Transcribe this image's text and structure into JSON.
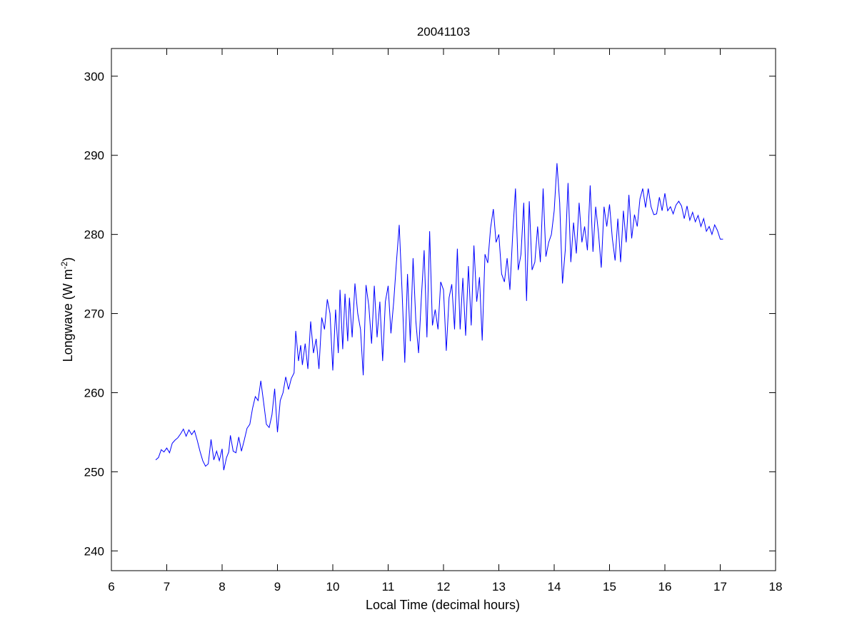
{
  "chart_data": {
    "type": "line",
    "title": "20041103",
    "xlabel": "Local Time (decimal hours)",
    "ylabel_main": "Longwave (W m",
    "ylabel_sup": "-2",
    "ylabel_close": ")",
    "xlim": [
      6,
      18
    ],
    "ylim": [
      237.5,
      303.5
    ],
    "xticks": [
      6,
      7,
      8,
      9,
      10,
      11,
      12,
      13,
      14,
      15,
      16,
      17,
      18
    ],
    "yticks": [
      240,
      250,
      260,
      270,
      280,
      290,
      300
    ],
    "grid": false,
    "line_color": "#0000ff",
    "series": [
      {
        "name": "Longwave",
        "x": [
          6.8,
          6.85,
          6.9,
          6.95,
          7.0,
          7.05,
          7.1,
          7.15,
          7.2,
          7.25,
          7.3,
          7.35,
          7.4,
          7.45,
          7.5,
          7.55,
          7.6,
          7.65,
          7.7,
          7.75,
          7.8,
          7.85,
          7.9,
          7.95,
          8.0,
          8.03,
          8.08,
          8.12,
          8.15,
          8.2,
          8.25,
          8.3,
          8.35,
          8.4,
          8.45,
          8.5,
          8.55,
          8.6,
          8.65,
          8.7,
          8.75,
          8.8,
          8.85,
          8.9,
          8.95,
          9.0,
          9.05,
          9.1,
          9.15,
          9.2,
          9.25,
          9.3,
          9.33,
          9.38,
          9.42,
          9.45,
          9.5,
          9.55,
          9.6,
          9.65,
          9.7,
          9.75,
          9.8,
          9.85,
          9.9,
          9.95,
          10.0,
          10.05,
          10.1,
          10.13,
          10.18,
          10.22,
          10.27,
          10.3,
          10.35,
          10.4,
          10.45,
          10.5,
          10.55,
          10.6,
          10.65,
          10.7,
          10.75,
          10.8,
          10.85,
          10.9,
          10.95,
          11.0,
          11.05,
          11.1,
          11.15,
          11.2,
          11.25,
          11.3,
          11.35,
          11.4,
          11.45,
          11.5,
          11.55,
          11.6,
          11.65,
          11.7,
          11.75,
          11.8,
          11.85,
          11.9,
          11.95,
          12.0,
          12.05,
          12.1,
          12.15,
          12.2,
          12.25,
          12.3,
          12.35,
          12.4,
          12.45,
          12.5,
          12.55,
          12.6,
          12.65,
          12.7,
          12.75,
          12.8,
          12.85,
          12.9,
          12.95,
          13.0,
          13.05,
          13.1,
          13.15,
          13.2,
          13.25,
          13.3,
          13.35,
          13.4,
          13.45,
          13.5,
          13.55,
          13.6,
          13.65,
          13.7,
          13.75,
          13.8,
          13.85,
          13.9,
          13.95,
          14.0,
          14.05,
          14.1,
          14.15,
          14.2,
          14.25,
          14.3,
          14.35,
          14.4,
          14.45,
          14.5,
          14.55,
          14.6,
          14.65,
          14.7,
          14.75,
          14.8,
          14.85,
          14.9,
          14.95,
          15.0,
          15.05,
          15.1,
          15.15,
          15.2,
          15.25,
          15.3,
          15.35,
          15.4,
          15.45,
          15.5,
          15.55,
          15.6,
          15.65,
          15.7,
          15.75,
          15.8,
          15.85,
          15.9,
          15.95,
          16.0,
          16.05,
          16.1,
          16.15,
          16.2,
          16.25,
          16.3,
          16.35,
          16.4,
          16.45,
          16.5,
          16.55,
          16.6,
          16.65,
          16.7,
          16.75,
          16.8,
          16.85,
          16.9,
          16.95,
          17.0,
          17.05
        ],
        "y": [
          251.5,
          251.8,
          252.8,
          252.5,
          253.0,
          252.4,
          253.6,
          254.0,
          254.3,
          254.8,
          255.4,
          254.5,
          255.3,
          254.7,
          255.2,
          254.0,
          252.6,
          251.4,
          250.7,
          251.0,
          254.1,
          251.5,
          252.6,
          251.4,
          252.9,
          250.2,
          251.8,
          252.5,
          254.6,
          252.6,
          252.4,
          254.4,
          252.6,
          254.0,
          255.5,
          256.0,
          258.0,
          259.5,
          259.0,
          261.5,
          258.8,
          256.0,
          255.6,
          257.2,
          260.5,
          255.0,
          259.0,
          260.0,
          262.0,
          260.4,
          261.8,
          262.5,
          267.8,
          264.0,
          266.0,
          263.5,
          266.2,
          263.0,
          269.0,
          265.0,
          266.8,
          263.0,
          269.5,
          268.0,
          271.8,
          270.0,
          262.8,
          270.5,
          265.0,
          273.0,
          265.5,
          272.5,
          266.5,
          272.0,
          267.0,
          273.8,
          270.0,
          268.0,
          262.2,
          273.6,
          271.0,
          266.2,
          273.5,
          267.0,
          271.5,
          264.0,
          271.5,
          273.5,
          267.5,
          271.5,
          276.5,
          281.2,
          273.0,
          263.8,
          275.0,
          266.5,
          277.0,
          269.0,
          265.0,
          272.0,
          278.0,
          267.0,
          280.4,
          268.5,
          270.5,
          268.0,
          274.0,
          273.0,
          265.3,
          272.0,
          273.7,
          268.0,
          278.2,
          268.0,
          274.5,
          267.2,
          276.0,
          268.5,
          278.6,
          271.5,
          274.6,
          266.6,
          277.5,
          276.4,
          280.8,
          283.2,
          279.0,
          280.0,
          275.0,
          274.0,
          277.0,
          273.0,
          280.0,
          285.8,
          275.5,
          277.5,
          284.0,
          271.6,
          284.2,
          275.5,
          276.5,
          281.0,
          276.5,
          285.8,
          277.2,
          279.0,
          280.0,
          283.0,
          289.0,
          284.0,
          273.8,
          278.0,
          286.5,
          276.5,
          281.5,
          277.6,
          284.0,
          279.0,
          281.0,
          278.0,
          286.2,
          277.8,
          283.5,
          280.2,
          275.8,
          283.5,
          281.0,
          283.8,
          279.5,
          276.7,
          282.0,
          276.5,
          283.0,
          279.0,
          285.0,
          279.5,
          282.5,
          281.0,
          284.5,
          285.8,
          283.4,
          285.8,
          283.5,
          282.5,
          282.6,
          284.7,
          283.0,
          285.2,
          283.0,
          283.5,
          282.6,
          283.7,
          284.2,
          283.6,
          282.0,
          283.6,
          281.8,
          282.8,
          281.6,
          282.4,
          281.0,
          282.0,
          280.4,
          281.0,
          280.0,
          281.2,
          280.5,
          279.4,
          279.4
        ]
      }
    ]
  }
}
